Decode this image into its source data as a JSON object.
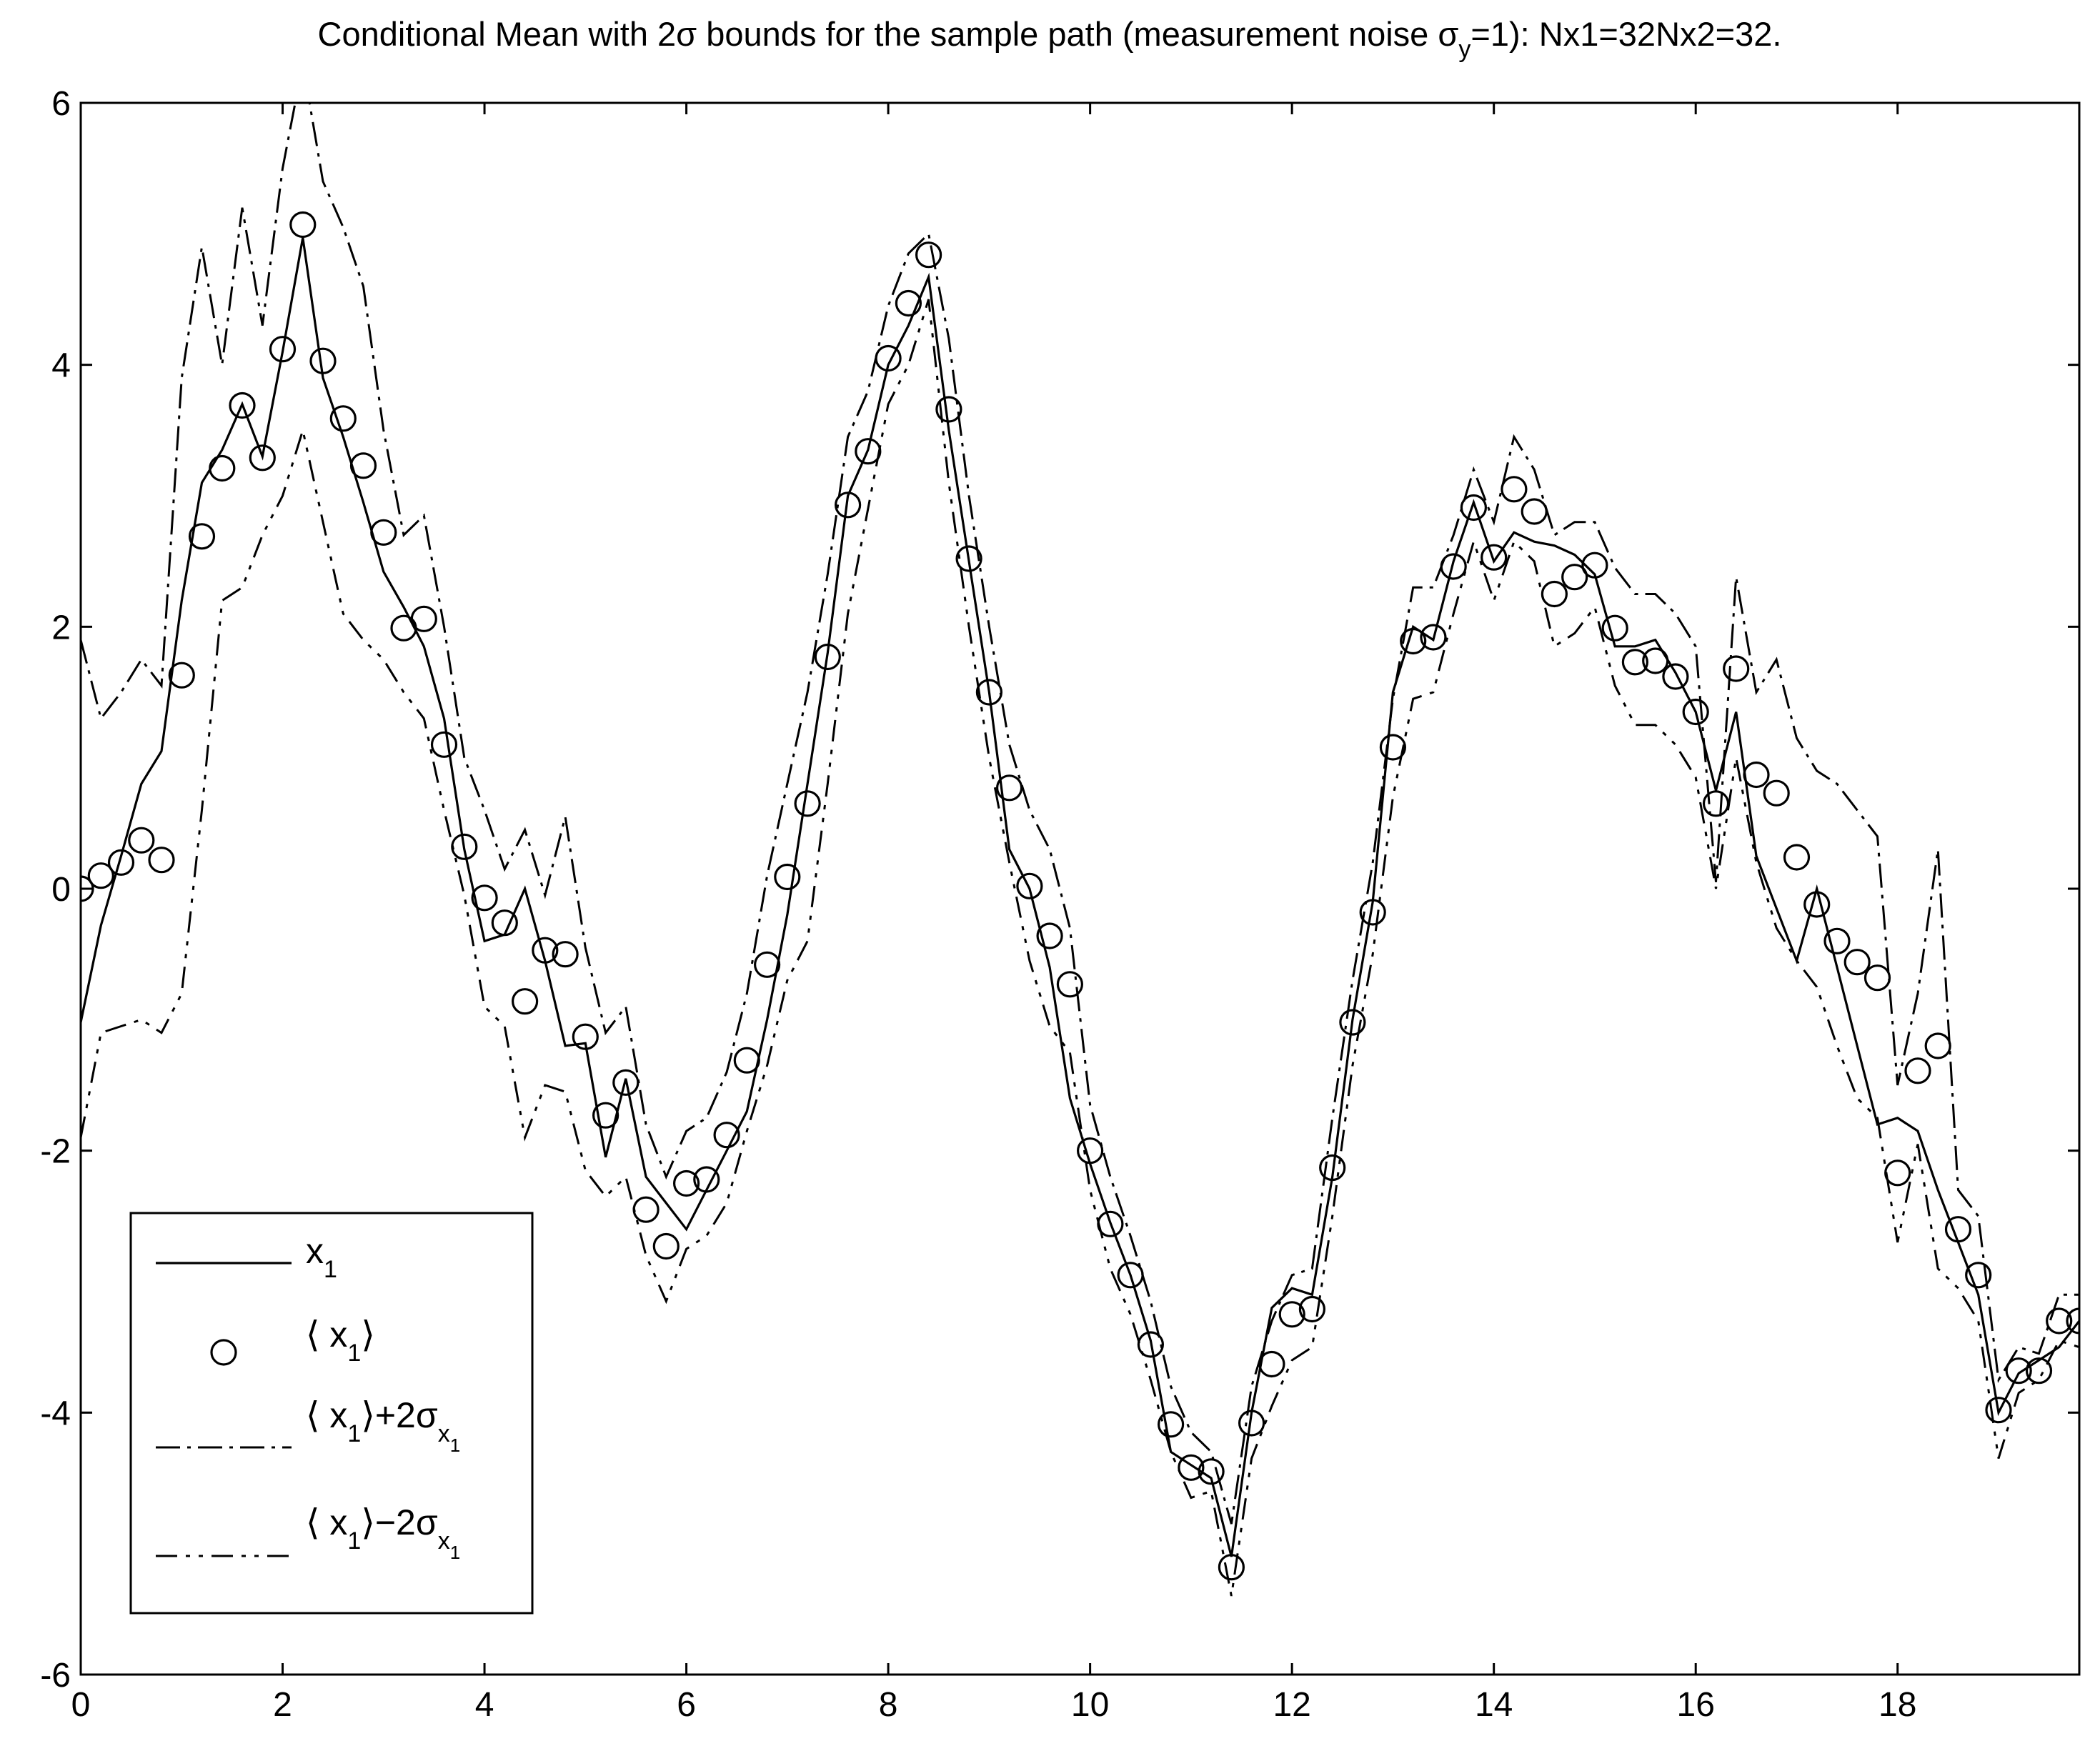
{
  "chart_data": {
    "type": "line",
    "title_parts": {
      "before_sigma": "Conditional Mean with 2",
      "sigma": "σ",
      "after_sigma": " bounds for the sample path (measurement noise ",
      "sigma_y": "σ",
      "sigma_y_sub": "y",
      "after": "=1): Nx1=32Nx2=32."
    },
    "xlim": [
      0,
      19.8
    ],
    "ylim": [
      -6,
      6
    ],
    "xticks": [
      "0",
      "2",
      "4",
      "6",
      "8",
      "10",
      "12",
      "14",
      "16",
      "18"
    ],
    "xtick_values": [
      0,
      2,
      4,
      6,
      8,
      10,
      12,
      14,
      16,
      18
    ],
    "yticks": [
      "-6",
      "-4",
      "-2",
      "0",
      "2",
      "4",
      "6"
    ],
    "ytick_values": [
      -6,
      -4,
      -2,
      0,
      2,
      4,
      6
    ],
    "legend": {
      "placement": "bottom-left",
      "entries": [
        {
          "symbol": "line",
          "label": "x",
          "label_sub": "1"
        },
        {
          "symbol": "circle",
          "label": "⟨ x",
          "label_sub": "1",
          "label_end": "⟩"
        },
        {
          "symbol": "dashdot",
          "label": "⟨ x",
          "label_sub": "1",
          "label_end": "⟩+2σ",
          "label_sub2": "x",
          "label_subsub": "1"
        },
        {
          "symbol": "dashdotdot",
          "label": "⟨ x",
          "label_sub": "1",
          "label_end": "⟩−2σ",
          "label_sub2": "x",
          "label_subsub": "1"
        }
      ]
    },
    "x": [
      0,
      0.2,
      0.4,
      0.6,
      0.8,
      1.0,
      1.2,
      1.4,
      1.6,
      1.8,
      2.0,
      2.2,
      2.4,
      2.6,
      2.8,
      3.0,
      3.2,
      3.4,
      3.6,
      3.8,
      4.0,
      4.2,
      4.4,
      4.6,
      4.8,
      5.0,
      5.2,
      5.4,
      5.6,
      5.8,
      6.0,
      6.2,
      6.4,
      6.6,
      6.8,
      7.0,
      7.2,
      7.4,
      7.6,
      7.8,
      8.0,
      8.2,
      8.4,
      8.6,
      8.8,
      9.0,
      9.2,
      9.4,
      9.6,
      9.8,
      10.0,
      10.2,
      10.4,
      10.6,
      10.8,
      11.0,
      11.2,
      11.4,
      11.6,
      11.8,
      12.0,
      12.2,
      12.4,
      12.6,
      12.8,
      13.0,
      13.2,
      13.4,
      13.6,
      13.8,
      14.0,
      14.2,
      14.4,
      14.6,
      14.8,
      15.0,
      15.2,
      15.4,
      15.6,
      15.8,
      16.0,
      16.2,
      16.4,
      16.6,
      16.8,
      17.0,
      17.2,
      17.4,
      17.6,
      17.8,
      18.0,
      18.2,
      18.4,
      18.6,
      18.8,
      19.0,
      19.2,
      19.4,
      19.6,
      19.8
    ],
    "series": [
      {
        "key": "x1",
        "name_ref": "x1",
        "values": [
          -1.02,
          -0.28,
          0.25,
          0.8,
          1.05,
          2.2,
          3.1,
          3.35,
          3.7,
          3.3,
          4.1,
          4.97,
          3.9,
          3.45,
          2.95,
          2.42,
          2.15,
          1.85,
          1.3,
          0.3,
          -0.4,
          -0.35,
          0.0,
          -0.55,
          -1.2,
          -1.18,
          -2.05,
          -1.45,
          -2.2,
          -2.4,
          -2.6,
          -2.3,
          -2.0,
          -1.7,
          -1.0,
          -0.2,
          0.8,
          1.8,
          3.0,
          3.35,
          4.0,
          4.3,
          4.67,
          3.5,
          2.5,
          1.5,
          0.3,
          0.0,
          -0.6,
          -1.6,
          -2.1,
          -2.55,
          -2.95,
          -3.45,
          -4.3,
          -4.4,
          -4.5,
          -5.1,
          -4.0,
          -3.2,
          -3.05,
          -3.1,
          -2.2,
          -1.0,
          -0.1,
          1.5,
          2.0,
          1.9,
          2.5,
          2.95,
          2.5,
          2.72,
          2.65,
          2.62,
          2.55,
          2.4,
          1.85,
          1.85,
          1.9,
          1.65,
          1.35,
          0.75,
          1.35,
          0.25,
          -0.15,
          -0.55,
          0.0,
          -0.6,
          -1.2,
          -1.8,
          -1.75,
          -1.85,
          -2.3,
          -2.7,
          -3.1,
          -4.0,
          -3.7,
          -3.6,
          -3.5,
          -3.3
        ]
      },
      {
        "key": "mean",
        "name_ref": "<x1>",
        "values": [
          0.0,
          0.1,
          0.2,
          0.37,
          0.22,
          1.63,
          2.69,
          3.21,
          3.69,
          3.29,
          4.12,
          5.07,
          4.03,
          3.59,
          3.23,
          2.72,
          1.99,
          2.06,
          1.1,
          0.32,
          -0.07,
          -0.26,
          -0.86,
          -0.47,
          -0.5,
          -1.13,
          -1.73,
          -1.48,
          -2.45,
          -2.73,
          -2.25,
          -2.22,
          -1.88,
          -1.31,
          -0.58,
          0.09,
          0.65,
          1.77,
          2.93,
          3.34,
          4.05,
          4.47,
          4.84,
          3.66,
          2.52,
          1.5,
          0.77,
          0.02,
          -0.36,
          -0.73,
          -2.0,
          -2.56,
          -2.95,
          -3.48,
          -4.09,
          -4.42,
          -4.45,
          -5.18,
          -4.08,
          -3.63,
          -3.25,
          -3.21,
          -2.13,
          -1.02,
          -0.18,
          1.08,
          1.89,
          1.92,
          2.46,
          2.91,
          2.53,
          3.05,
          2.88,
          2.25,
          2.38,
          2.47,
          1.99,
          1.73,
          1.74,
          1.62,
          1.35,
          0.65,
          1.68,
          0.87,
          0.73,
          0.24,
          -0.12,
          -0.4,
          -0.56,
          -0.68,
          -2.17,
          -1.39,
          -1.2,
          -2.6,
          -2.95,
          -3.98,
          -3.68,
          -3.68,
          -3.3,
          -3.3
        ]
      },
      {
        "key": "upper",
        "name_ref": "<x1>+2sigma",
        "values": [
          1.9,
          1.3,
          1.5,
          1.75,
          1.55,
          3.9,
          4.9,
          4.0,
          5.2,
          4.3,
          5.5,
          6.3,
          5.4,
          5.05,
          4.6,
          3.5,
          2.7,
          2.85,
          2.0,
          1.0,
          0.6,
          0.15,
          0.45,
          -0.05,
          0.55,
          -0.45,
          -1.1,
          -0.9,
          -1.8,
          -2.2,
          -1.85,
          -1.75,
          -1.4,
          -0.8,
          0.1,
          0.8,
          1.5,
          2.4,
          3.45,
          3.8,
          4.45,
          4.85,
          5.0,
          4.2,
          3.0,
          2.0,
          1.1,
          0.6,
          0.3,
          -0.3,
          -1.65,
          -2.2,
          -2.65,
          -3.15,
          -3.8,
          -4.15,
          -4.3,
          -4.85,
          -3.8,
          -3.3,
          -2.95,
          -2.9,
          -1.75,
          -0.7,
          0.2,
          1.45,
          2.3,
          2.3,
          2.7,
          3.2,
          2.8,
          3.45,
          3.2,
          2.7,
          2.8,
          2.8,
          2.45,
          2.25,
          2.25,
          2.1,
          1.85,
          0.05,
          2.38,
          1.5,
          1.75,
          1.15,
          0.9,
          0.8,
          0.6,
          0.4,
          -1.5,
          -0.8,
          0.3,
          -2.3,
          -2.5,
          -3.75,
          -3.5,
          -3.55,
          -3.1,
          -3.1
        ]
      },
      {
        "key": "lower",
        "name_ref": "<x1>-2sigma",
        "values": [
          -1.9,
          -1.1,
          -1.05,
          -1.0,
          -1.1,
          -0.8,
          0.6,
          2.2,
          2.3,
          2.7,
          3.0,
          3.5,
          2.8,
          2.1,
          1.9,
          1.75,
          1.5,
          1.3,
          0.6,
          -0.05,
          -0.9,
          -1.05,
          -1.9,
          -1.5,
          -1.55,
          -2.15,
          -2.35,
          -2.2,
          -2.8,
          -3.15,
          -2.75,
          -2.65,
          -2.4,
          -1.85,
          -1.35,
          -0.7,
          -0.4,
          0.8,
          2.1,
          2.9,
          3.7,
          4.0,
          4.5,
          3.1,
          2.0,
          1.0,
          0.2,
          -0.55,
          -1.05,
          -1.25,
          -2.3,
          -2.9,
          -3.25,
          -3.75,
          -4.3,
          -4.65,
          -4.6,
          -5.4,
          -4.35,
          -3.95,
          -3.6,
          -3.5,
          -2.5,
          -1.35,
          -0.5,
          0.7,
          1.45,
          1.5,
          2.1,
          2.65,
          2.2,
          2.65,
          2.5,
          1.85,
          1.95,
          2.15,
          1.55,
          1.25,
          1.25,
          1.1,
          0.85,
          0.0,
          1.0,
          0.2,
          -0.3,
          -0.55,
          -0.75,
          -1.2,
          -1.6,
          -1.75,
          -2.7,
          -1.95,
          -2.9,
          -3.05,
          -3.3,
          -4.35,
          -3.85,
          -3.75,
          -3.45,
          -3.5
        ]
      }
    ]
  }
}
